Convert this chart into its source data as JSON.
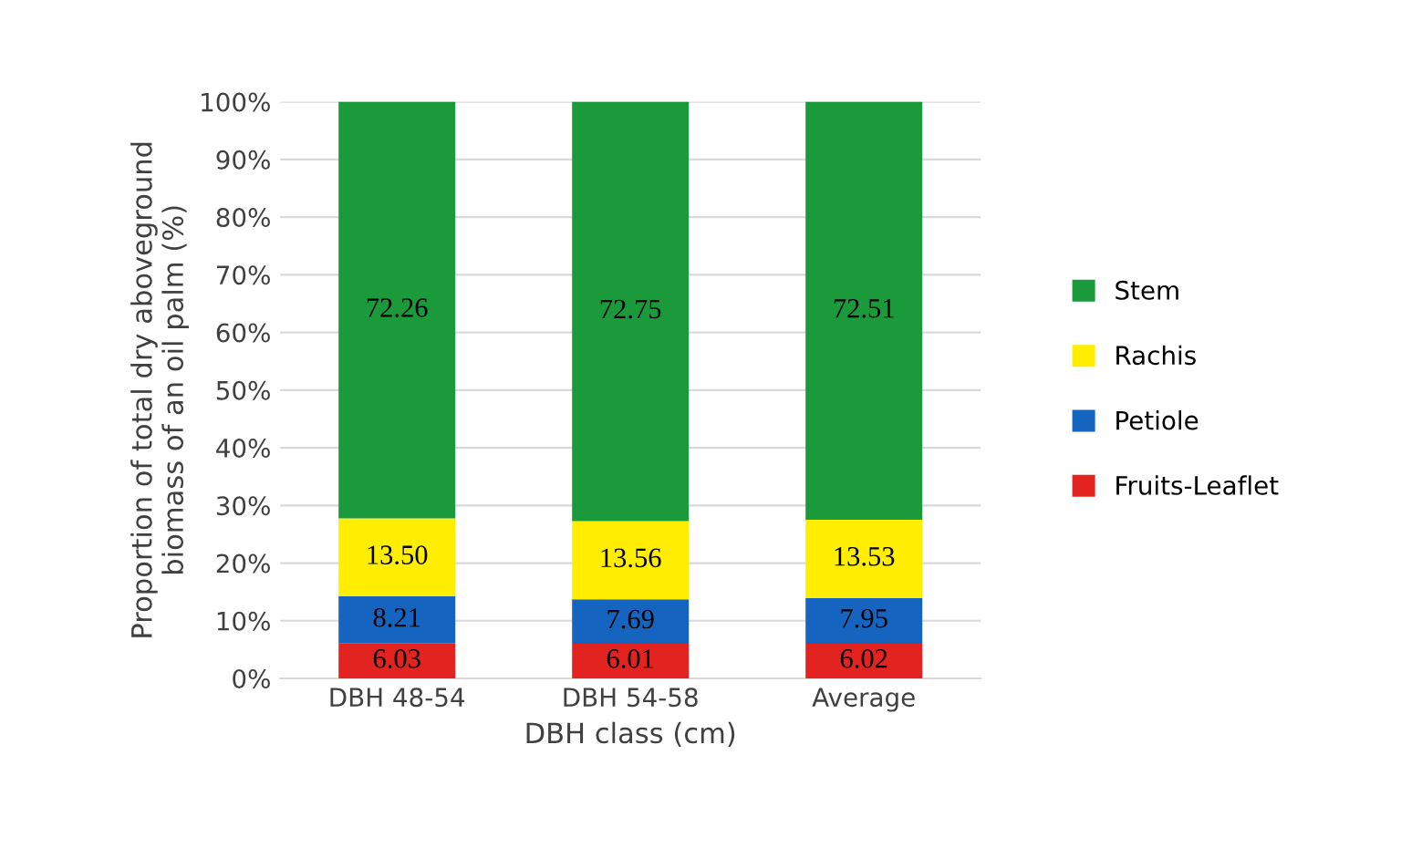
{
  "chart_data": {
    "type": "bar",
    "stacked": true,
    "xlabel": "DBH class (cm)",
    "ylabel": "Proportion of total dry aboveground\nbiomass of an oil palm (%)",
    "categories": [
      "DBH 48-54",
      "DBH 54-58",
      "Average"
    ],
    "series": [
      {
        "name": "Fruits-Leaflet",
        "color": "#e3231f",
        "values": [
          6.03,
          6.01,
          6.02
        ],
        "value_labels": [
          "6.03",
          "6.01",
          "6.02"
        ]
      },
      {
        "name": "Petiole",
        "color": "#1565c0",
        "values": [
          8.21,
          7.69,
          7.95
        ],
        "value_labels": [
          "8.21",
          "7.69",
          "7.95"
        ]
      },
      {
        "name": "Rachis",
        "color": "#ffee00",
        "values": [
          13.5,
          13.56,
          13.53
        ],
        "value_labels": [
          "13.50",
          "13.56",
          "13.53"
        ]
      },
      {
        "name": "Stem",
        "color": "#1a9a3a",
        "values": [
          72.26,
          72.75,
          72.51
        ],
        "value_labels": [
          "72.26",
          "72.75",
          "72.51"
        ]
      }
    ],
    "ylim": [
      0,
      100
    ],
    "yticks": [
      {
        "value": 0,
        "label": "0%"
      },
      {
        "value": 10,
        "label": "10%"
      },
      {
        "value": 20,
        "label": "20%"
      },
      {
        "value": 30,
        "label": "30%"
      },
      {
        "value": 40,
        "label": "40%"
      },
      {
        "value": 50,
        "label": "50%"
      },
      {
        "value": 60,
        "label": "60%"
      },
      {
        "value": 70,
        "label": "70%"
      },
      {
        "value": 80,
        "label": "80%"
      },
      {
        "value": 90,
        "label": "90%"
      },
      {
        "value": 100,
        "label": "100%"
      }
    ],
    "grid": "y",
    "legend": "right"
  }
}
